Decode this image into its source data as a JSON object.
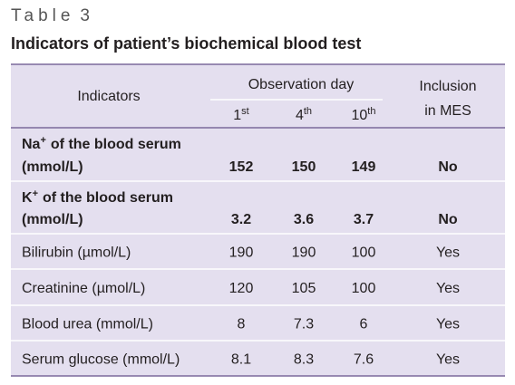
{
  "header": {
    "label": "Table",
    "number": "3",
    "title": "Indicators of patient’s biochemical blood test"
  },
  "table": {
    "columns": {
      "indicators": "Indicators",
      "observation": "Observation day",
      "days": [
        {
          "num": "1",
          "sup": "st"
        },
        {
          "num": "4",
          "sup": "th"
        },
        {
          "num": "10",
          "sup": "th"
        }
      ],
      "inclusion": [
        "Inclusion",
        "in MES"
      ]
    },
    "rows": [
      {
        "label": "Na",
        "sup": "+",
        "rest": "of the blood serum",
        "unit": "(mmol/L)",
        "values": [
          152,
          150,
          149
        ],
        "inclusion": "No"
      },
      {
        "label": "K",
        "sup": "+",
        "rest": "of the blood serum",
        "unit": "(mmol/L)",
        "values": [
          3.2,
          3.6,
          3.7
        ],
        "inclusion": "No"
      },
      {
        "label": "Bilirubin (µmol/L)",
        "values": [
          190,
          190,
          100
        ],
        "inclusion": "Yes"
      },
      {
        "label": "Creatinine (µmol/L)",
        "values": [
          120,
          105,
          100
        ],
        "inclusion": "Yes"
      },
      {
        "label": "Blood urea (mmol/L)",
        "values": [
          8,
          7.3,
          6
        ],
        "inclusion": "Yes"
      },
      {
        "label": "Serum glucose (mmol/L)",
        "values": [
          8.1,
          8.3,
          7.6
        ],
        "inclusion": "Yes"
      }
    ]
  }
}
